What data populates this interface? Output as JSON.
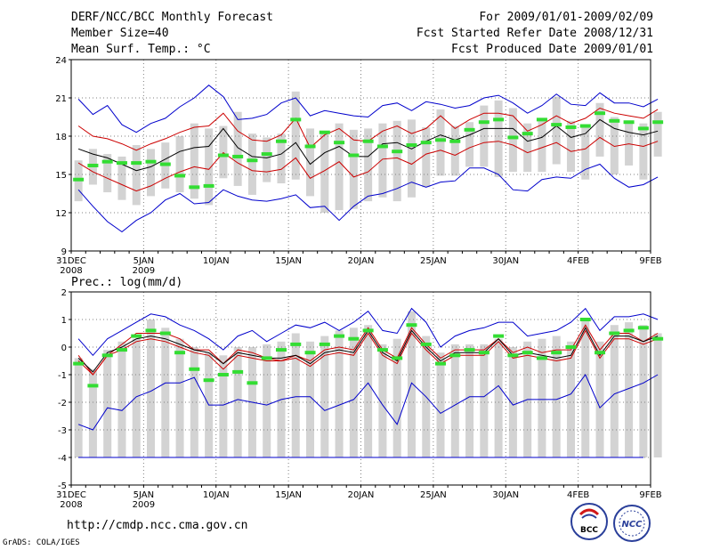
{
  "header": {
    "title": "DERF/NCC/BCC Monthly Forecast",
    "member_size": "Member Size=40",
    "forecast_period": "For 2009/01/01-2009/02/09",
    "refer_date": "Fcst Started Refer Date 2008/12/31",
    "produced_date": "Fcst Produced Date 2009/01/01"
  },
  "footer": {
    "url": "http://cmdp.ncc.cma.gov.cn",
    "credit": "GrADS: COLA/IGES",
    "logo_left": "BCC",
    "logo_right": "NCC"
  },
  "colors": {
    "envelope_outer": "#0000cc",
    "envelope_inner": "#cc0000",
    "ensemble_mean": "#000000",
    "box": "#d3d3d3",
    "observation": "#33dd33",
    "grid": "#808080"
  },
  "chart_data": [
    {
      "type": "ensemble-box",
      "title": "Mean Surf. Temp.: °C",
      "xlabel": "",
      "ylabel": "",
      "ylim": [
        9,
        24
      ],
      "yticks": [
        9,
        12,
        15,
        18,
        21,
        24
      ],
      "x_days": 40,
      "xtick_labels": [
        {
          "day": 0,
          "line1": "31DEC",
          "line2": "2008"
        },
        {
          "day": 5,
          "line1": "5JAN",
          "line2": "2009"
        },
        {
          "day": 10,
          "line1": "10JAN",
          "line2": ""
        },
        {
          "day": 15,
          "line1": "15JAN",
          "line2": ""
        },
        {
          "day": 20,
          "line1": "20JAN",
          "line2": ""
        },
        {
          "day": 25,
          "line1": "25JAN",
          "line2": ""
        },
        {
          "day": 30,
          "line1": "30JAN",
          "line2": ""
        },
        {
          "day": 35,
          "line1": "4FEB",
          "line2": ""
        },
        {
          "day": 40,
          "line1": "9FEB",
          "line2": ""
        }
      ],
      "max": [
        20.9,
        19.7,
        20.4,
        18.9,
        18.3,
        19.0,
        19.4,
        20.3,
        21.0,
        22.0,
        21.1,
        19.3,
        19.4,
        19.7,
        20.6,
        21.0,
        19.6,
        20.0,
        19.8,
        19.6,
        19.5,
        20.4,
        20.6,
        20.0,
        20.7,
        20.5,
        20.2,
        20.4,
        21.0,
        21.2,
        20.6,
        19.8,
        20.4,
        21.3,
        20.5,
        20.4,
        21.4,
        20.6,
        20.6,
        20.3,
        20.9
      ],
      "upper": [
        18.8,
        18.0,
        17.8,
        17.4,
        16.9,
        17.4,
        17.8,
        18.3,
        18.7,
        18.8,
        19.8,
        18.4,
        17.7,
        17.6,
        18.1,
        19.4,
        17.1,
        18.1,
        18.6,
        17.7,
        17.6,
        18.4,
        18.8,
        18.2,
        18.6,
        19.6,
        18.6,
        19.3,
        19.8,
        19.8,
        19.6,
        18.4,
        18.9,
        19.6,
        19.0,
        19.4,
        20.2,
        19.8,
        19.6,
        19.4,
        20.1
      ],
      "mean": [
        17.0,
        16.6,
        16.3,
        15.8,
        15.3,
        15.6,
        16.2,
        16.8,
        17.1,
        17.2,
        18.6,
        17.1,
        16.4,
        16.3,
        16.6,
        17.5,
        15.8,
        16.7,
        17.2,
        16.4,
        16.4,
        17.4,
        17.5,
        17.0,
        17.6,
        18.1,
        17.7,
        18.1,
        18.6,
        18.6,
        18.6,
        17.6,
        17.9,
        18.8,
        17.9,
        18.2,
        19.3,
        18.6,
        18.3,
        18.1,
        18.4
      ],
      "lower": [
        15.9,
        15.2,
        14.7,
        14.2,
        13.7,
        14.1,
        14.7,
        15.2,
        15.6,
        15.4,
        16.7,
        15.9,
        15.3,
        15.2,
        15.4,
        16.3,
        14.7,
        15.3,
        16.0,
        14.8,
        15.2,
        16.2,
        16.3,
        15.8,
        16.6,
        16.9,
        16.5,
        17.1,
        17.5,
        17.6,
        17.3,
        16.7,
        17.1,
        17.5,
        16.8,
        17.0,
        17.9,
        17.2,
        17.4,
        17.2,
        17.6
      ],
      "min": [
        13.8,
        12.5,
        11.3,
        10.5,
        11.4,
        12.0,
        13.0,
        13.5,
        12.7,
        12.8,
        13.8,
        13.3,
        13.0,
        12.9,
        13.1,
        13.4,
        12.4,
        12.5,
        11.4,
        12.5,
        13.3,
        13.5,
        13.9,
        14.4,
        14.0,
        14.4,
        14.5,
        15.5,
        15.5,
        15.0,
        13.8,
        13.7,
        14.6,
        14.8,
        14.7,
        15.4,
        15.8,
        14.7,
        14.0,
        14.2,
        14.8
      ],
      "box_top": [
        16.1,
        17.0,
        16.6,
        16.4,
        17.3,
        17.0,
        17.5,
        18.0,
        19.0,
        18.6,
        18.8,
        19.9,
        18.2,
        17.9,
        18.2,
        21.5,
        18.6,
        18.3,
        19.0,
        18.5,
        18.6,
        19.0,
        19.2,
        19.3,
        18.7,
        20.1,
        18.8,
        19.1,
        20.4,
        20.8,
        20.2,
        19.0,
        19.4,
        21.1,
        19.2,
        18.8,
        20.6,
        19.5,
        19.1,
        19.0,
        19.9
      ],
      "box_bottom": [
        12.9,
        14.2,
        13.6,
        13.0,
        12.6,
        13.3,
        13.9,
        13.6,
        13.1,
        12.6,
        14.7,
        14.1,
        13.4,
        14.4,
        14.3,
        14.6,
        13.3,
        12.0,
        12.2,
        12.3,
        12.9,
        13.2,
        12.9,
        13.2,
        14.0,
        14.9,
        14.9,
        15.6,
        15.6,
        14.8,
        15.2,
        15.2,
        15.2,
        15.8,
        15.2,
        14.6,
        16.4,
        15.0,
        15.7,
        14.6,
        16.4
      ],
      "observed": [
        14.6,
        15.7,
        16.0,
        15.9,
        15.9,
        16.0,
        15.8,
        14.9,
        14.0,
        14.1,
        16.5,
        16.4,
        16.1,
        16.6,
        17.6,
        19.3,
        17.2,
        18.3,
        17.5,
        16.5,
        17.6,
        17.2,
        16.8,
        17.3,
        17.5,
        17.7,
        17.6,
        18.5,
        19.1,
        19.3,
        17.9,
        18.2,
        19.3,
        18.9,
        18.7,
        18.8,
        19.8,
        19.2,
        19.1,
        18.6,
        19.1
      ]
    },
    {
      "type": "ensemble-box",
      "title": "Prec.: log(mm/d)",
      "xlabel": "",
      "ylabel": "",
      "ylim": [
        -5,
        2
      ],
      "yticks": [
        -5,
        -4,
        -3,
        -2,
        -1,
        0,
        1,
        2
      ],
      "x_days": 40,
      "xtick_labels": [
        {
          "day": 0,
          "line1": "31DEC",
          "line2": "2008"
        },
        {
          "day": 5,
          "line1": "5JAN",
          "line2": "2009"
        },
        {
          "day": 10,
          "line1": "10JAN",
          "line2": ""
        },
        {
          "day": 15,
          "line1": "15JAN",
          "line2": ""
        },
        {
          "day": 20,
          "line1": "20JAN",
          "line2": ""
        },
        {
          "day": 25,
          "line1": "25JAN",
          "line2": ""
        },
        {
          "day": 30,
          "line1": "30JAN",
          "line2": ""
        },
        {
          "day": 35,
          "line1": "4FEB",
          "line2": ""
        },
        {
          "day": 40,
          "line1": "9FEB",
          "line2": ""
        }
      ],
      "max": [
        0.3,
        -0.3,
        0.3,
        0.6,
        0.9,
        1.2,
        1.1,
        0.8,
        0.6,
        0.3,
        -0.1,
        0.4,
        0.6,
        0.2,
        0.5,
        0.8,
        0.7,
        0.9,
        0.6,
        0.9,
        1.3,
        0.6,
        0.5,
        1.4,
        0.9,
        0.0,
        0.4,
        0.6,
        0.7,
        0.9,
        0.9,
        0.4,
        0.5,
        0.6,
        0.9,
        1.4,
        0.6,
        1.1,
        1.1,
        1.2,
        1.0
      ],
      "upper": [
        -0.3,
        -1.0,
        -0.3,
        0.1,
        0.5,
        0.5,
        0.5,
        0.3,
        -0.1,
        -0.1,
        -0.6,
        -0.1,
        -0.2,
        -0.4,
        -0.5,
        -0.3,
        -0.5,
        -0.1,
        0.0,
        -0.1,
        0.7,
        -0.1,
        -0.4,
        0.7,
        0.1,
        -0.4,
        -0.1,
        -0.1,
        -0.1,
        0.3,
        -0.2,
        0.0,
        -0.2,
        -0.1,
        -0.1,
        0.8,
        -0.1,
        0.5,
        0.5,
        0.2,
        0.5
      ],
      "mean": [
        -0.4,
        -0.9,
        -0.2,
        0.0,
        0.3,
        0.4,
        0.3,
        0.1,
        -0.1,
        -0.2,
        -0.6,
        -0.2,
        -0.3,
        -0.4,
        -0.4,
        -0.3,
        -0.6,
        -0.2,
        -0.1,
        -0.2,
        0.6,
        -0.2,
        -0.5,
        0.6,
        0.0,
        -0.5,
        -0.2,
        -0.2,
        -0.2,
        0.3,
        -0.3,
        -0.2,
        -0.3,
        -0.4,
        -0.3,
        0.7,
        -0.3,
        0.4,
        0.4,
        0.2,
        0.4
      ],
      "lower": [
        -0.5,
        -1.0,
        -0.3,
        -0.1,
        0.2,
        0.3,
        0.2,
        0.0,
        -0.2,
        -0.3,
        -0.8,
        -0.3,
        -0.4,
        -0.5,
        -0.5,
        -0.4,
        -0.7,
        -0.3,
        -0.2,
        -0.3,
        0.5,
        -0.3,
        -0.6,
        0.5,
        -0.1,
        -0.6,
        -0.3,
        -0.3,
        -0.3,
        0.2,
        -0.4,
        -0.3,
        -0.4,
        -0.5,
        -0.4,
        0.6,
        -0.4,
        0.3,
        0.3,
        0.1,
        0.3
      ],
      "min": [
        -2.8,
        -3.0,
        -2.2,
        -2.3,
        -1.8,
        -1.6,
        -1.3,
        -1.3,
        -1.1,
        -2.1,
        -2.1,
        -1.9,
        -2.0,
        -2.1,
        -1.9,
        -1.8,
        -1.8,
        -2.3,
        -2.1,
        -1.9,
        -1.3,
        -2.1,
        -2.8,
        -1.3,
        -1.8,
        -2.4,
        -2.1,
        -1.8,
        -1.8,
        -1.4,
        -2.1,
        -1.9,
        -1.9,
        -1.9,
        -1.7,
        -1.0,
        -2.2,
        -1.7,
        -1.5,
        -1.3,
        -1.0
      ],
      "box_top": [
        -0.4,
        -0.8,
        -0.1,
        0.2,
        0.3,
        1.0,
        0.7,
        0.3,
        0.0,
        -0.2,
        -0.3,
        0.0,
        0.0,
        0.1,
        0.2,
        0.5,
        0.2,
        0.4,
        0.6,
        0.7,
        0.8,
        0.1,
        0.3,
        1.3,
        0.4,
        -0.2,
        0.1,
        0.1,
        0.1,
        0.3,
        0.0,
        0.2,
        0.3,
        0.4,
        0.2,
        1.0,
        0.2,
        0.8,
        0.9,
        0.8,
        0.5
      ],
      "box_bottom": [
        -4.0,
        -4.0,
        -4.0,
        -4.0,
        -4.0,
        -4.0,
        -4.0,
        -4.0,
        -4.0,
        -4.0,
        -4.0,
        -4.0,
        -4.0,
        -4.0,
        -4.0,
        -4.0,
        -4.0,
        -4.0,
        -4.0,
        -4.0,
        -4.0,
        -4.0,
        -4.0,
        -4.0,
        -4.0,
        -4.0,
        -4.0,
        -4.0,
        -4.0,
        -4.0,
        -4.0,
        -4.0,
        -4.0,
        -4.0,
        -4.0,
        -4.0,
        -4.0,
        -4.0,
        -4.0,
        -4.0,
        -4.0
      ],
      "observed": [
        -0.6,
        -1.4,
        -0.3,
        -0.1,
        0.4,
        0.6,
        0.5,
        -0.2,
        -0.8,
        -1.2,
        -1.0,
        -0.9,
        -1.3,
        -0.4,
        -0.1,
        0.1,
        -0.2,
        0.1,
        0.4,
        0.3,
        0.6,
        -0.1,
        -0.4,
        0.8,
        0.1,
        -0.6,
        -0.3,
        -0.1,
        -0.2,
        0.4,
        -0.3,
        -0.2,
        -0.4,
        -0.2,
        0.0,
        1.0,
        -0.2,
        0.5,
        0.6,
        0.7,
        0.3
      ],
      "floor_line": -4.0
    }
  ]
}
